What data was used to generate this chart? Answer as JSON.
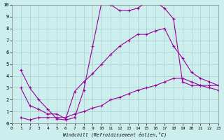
{
  "xlabel": "Windchill (Refroidissement éolien,°C)",
  "background_color": "#cceeed",
  "line_color": "#990099",
  "grid_color": "#aacccc",
  "xlim": [
    0,
    23
  ],
  "ylim": [
    0,
    10
  ],
  "xticks": [
    0,
    1,
    2,
    3,
    4,
    5,
    6,
    7,
    8,
    9,
    10,
    11,
    12,
    13,
    14,
    15,
    16,
    17,
    18,
    19,
    20,
    21,
    22,
    23
  ],
  "yticks": [
    0,
    1,
    2,
    3,
    4,
    5,
    6,
    7,
    8,
    9,
    10
  ],
  "series1_x": [
    1,
    2,
    3,
    4,
    5,
    6,
    7,
    8,
    9,
    10,
    11,
    12,
    13,
    14,
    15,
    16,
    17,
    18,
    19,
    20,
    21,
    22,
    23
  ],
  "series1_y": [
    4.5,
    3.0,
    2.0,
    1.2,
    0.4,
    0.3,
    0.5,
    2.8,
    6.5,
    10.2,
    10.0,
    9.5,
    9.5,
    9.7,
    10.2,
    10.2,
    9.7,
    8.8,
    3.5,
    3.2,
    3.2,
    3.2,
    3.2
  ],
  "series2_x": [
    1,
    2,
    3,
    4,
    5,
    6,
    7,
    8,
    9,
    10,
    11,
    12,
    13,
    14,
    15,
    16,
    17,
    18,
    19,
    20,
    21,
    22,
    23
  ],
  "series2_y": [
    3.0,
    1.5,
    1.2,
    0.8,
    0.8,
    0.4,
    2.7,
    3.5,
    4.2,
    5.0,
    5.8,
    6.5,
    7.0,
    7.5,
    7.5,
    7.8,
    8.0,
    6.5,
    5.5,
    4.3,
    3.8,
    3.5,
    3.2
  ],
  "series3_x": [
    1,
    2,
    3,
    4,
    5,
    6,
    7,
    8,
    9,
    10,
    11,
    12,
    13,
    14,
    15,
    16,
    17,
    18,
    19,
    20,
    21,
    22,
    23
  ],
  "series3_y": [
    0.5,
    0.3,
    0.5,
    0.5,
    0.5,
    0.5,
    0.8,
    1.0,
    1.3,
    1.5,
    2.0,
    2.2,
    2.5,
    2.8,
    3.0,
    3.2,
    3.5,
    3.8,
    3.8,
    3.5,
    3.2,
    3.0,
    2.8
  ]
}
